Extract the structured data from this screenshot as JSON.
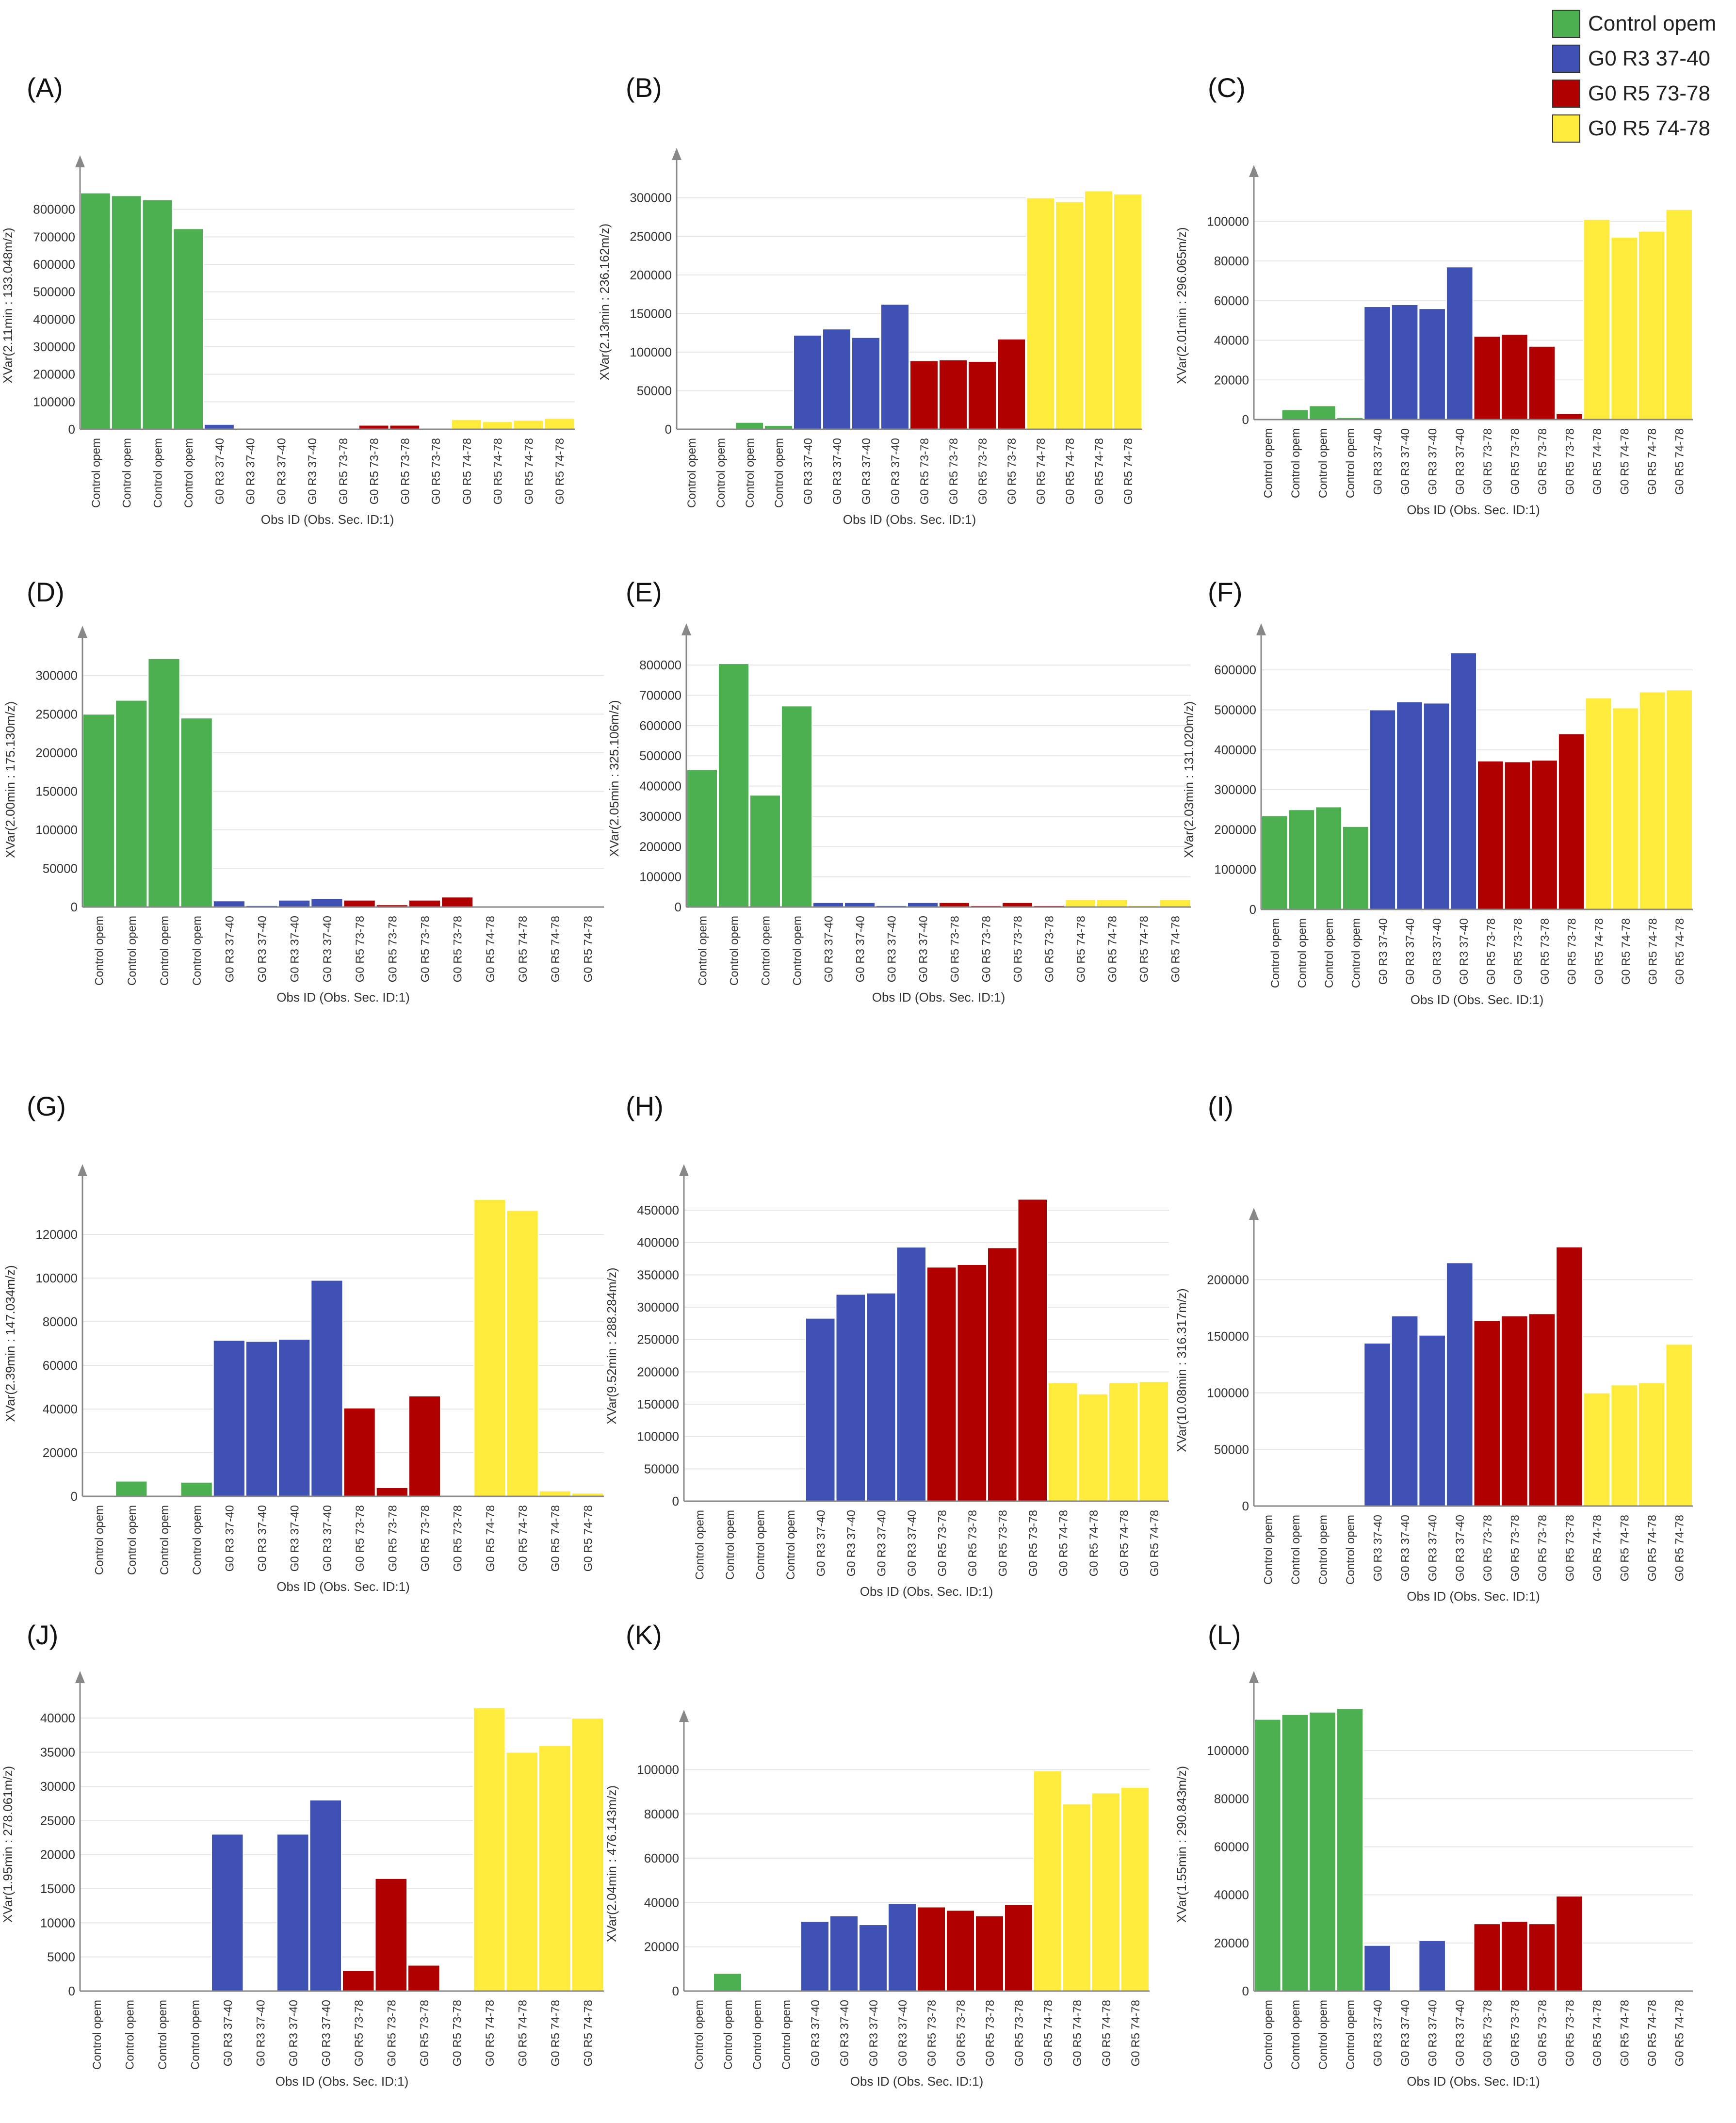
{
  "legend": [
    {
      "label": "Control opem",
      "color": "#4caf50"
    },
    {
      "label": "G0 R3 37-40",
      "color": "#3f51b5"
    },
    {
      "label": "G0 R5 73-78",
      "color": "#b00000"
    },
    {
      "label": "G0 R5 74-78",
      "color": "#ffeb3b"
    }
  ],
  "chart_data": [
    {
      "type": "bar",
      "panel": "(A)",
      "ylabel": "XVar(2.11min : 133.048m/z)",
      "xlabel": "Obs ID (Obs. Sec. ID:1)",
      "ylim": [
        0,
        900000
      ],
      "yticks": [
        0,
        100000,
        200000,
        300000,
        400000,
        500000,
        600000,
        700000,
        800000
      ],
      "categories": [
        "Control opem",
        "Control opem",
        "Control opem",
        "Control opem",
        "G0 R3 37-40",
        "G0 R3 37-40",
        "G0 R3 37-40",
        "G0 R3 37-40",
        "G0 R5 73-78",
        "G0 R5 73-78",
        "G0 R5 73-78",
        "G0 R5 73-78",
        "G0 R5 74-78",
        "G0 R5 74-78",
        "G0 R5 74-78",
        "G0 R5 74-78"
      ],
      "groups": [
        0,
        0,
        0,
        0,
        1,
        1,
        1,
        1,
        2,
        2,
        2,
        2,
        3,
        3,
        3,
        3
      ],
      "values": [
        860000,
        850000,
        835000,
        730000,
        18000,
        2000,
        2000,
        2000,
        2000,
        15000,
        15000,
        2000,
        35000,
        28000,
        33000,
        40000
      ]
    },
    {
      "type": "bar",
      "panel": "(B)",
      "ylabel": "XVar(2.13min : 236.162m/z)",
      "xlabel": "Obs ID (Obs. Sec. ID:1)",
      "ylim": [
        0,
        330000
      ],
      "yticks": [
        0,
        50000,
        100000,
        150000,
        200000,
        250000,
        300000
      ],
      "categories": [
        "Control opem",
        "Control opem",
        "Control opem",
        "Control opem",
        "G0 R3 37-40",
        "G0 R3 37-40",
        "G0 R3 37-40",
        "G0 R3 37-40",
        "G0 R5 73-78",
        "G0 R5 73-78",
        "G0 R5 73-78",
        "G0 R5 73-78",
        "G0 R5 74-78",
        "G0 R5 74-78",
        "G0 R5 74-78",
        "G0 R5 74-78"
      ],
      "groups": [
        0,
        0,
        0,
        0,
        1,
        1,
        1,
        1,
        2,
        2,
        2,
        2,
        3,
        3,
        3,
        3
      ],
      "values": [
        1000,
        1000,
        9000,
        5000,
        122000,
        130000,
        119000,
        162000,
        89000,
        90000,
        88000,
        117000,
        300000,
        295000,
        309000,
        305000
      ]
    },
    {
      "type": "bar",
      "panel": "(C)",
      "ylabel": "XVar(2.01min : 296.065m/z)",
      "xlabel": "Obs ID (Obs. Sec. ID:1)",
      "ylim": [
        0,
        115000
      ],
      "yticks": [
        0,
        20000,
        40000,
        60000,
        80000,
        100000
      ],
      "categories": [
        "Control opem",
        "Control opem",
        "Control opem",
        "Control opem",
        "G0 R3 37-40",
        "G0 R3 37-40",
        "G0 R3 37-40",
        "G0 R3 37-40",
        "G0 R5 73-78",
        "G0 R5 73-78",
        "G0 R5 73-78",
        "G0 R5 73-78",
        "G0 R5 74-78",
        "G0 R5 74-78",
        "G0 R5 74-78",
        "G0 R5 74-78"
      ],
      "groups": [
        0,
        0,
        0,
        0,
        1,
        1,
        1,
        1,
        2,
        2,
        2,
        2,
        3,
        3,
        3,
        3
      ],
      "values": [
        500,
        5000,
        7000,
        1000,
        57000,
        58000,
        56000,
        77000,
        42000,
        43000,
        37000,
        3000,
        101000,
        92000,
        95000,
        106000
      ]
    },
    {
      "type": "bar",
      "panel": "(D)",
      "ylabel": "XVar(2.00min : 175.130m/z)",
      "xlabel": "Obs ID (Obs. Sec. ID:1)",
      "ylim": [
        0,
        330000
      ],
      "yticks": [
        0,
        50000,
        100000,
        150000,
        200000,
        250000,
        300000
      ],
      "categories": [
        "Control opem",
        "Control opem",
        "Control opem",
        "Control opem",
        "G0 R3 37-40",
        "G0 R3 37-40",
        "G0 R3 37-40",
        "G0 R3 37-40",
        "G0 R5 73-78",
        "G0 R5 73-78",
        "G0 R5 73-78",
        "G0 R5 73-78",
        "G0 R5 74-78",
        "G0 R5 74-78",
        "G0 R5 74-78",
        "G0 R5 74-78"
      ],
      "groups": [
        0,
        0,
        0,
        0,
        1,
        1,
        1,
        1,
        2,
        2,
        2,
        2,
        3,
        3,
        3,
        3
      ],
      "values": [
        250000,
        268000,
        322000,
        245000,
        8000,
        2000,
        9000,
        11000,
        9000,
        3000,
        9000,
        13000,
        1000,
        1000,
        1000,
        1000
      ]
    },
    {
      "type": "bar",
      "panel": "(E)",
      "ylabel": "XVar(2.05min : 325.106m/z)",
      "xlabel": "Obs ID (Obs. Sec. ID:1)",
      "ylim": [
        0,
        850000
      ],
      "yticks": [
        0,
        100000,
        200000,
        300000,
        400000,
        500000,
        600000,
        700000,
        800000
      ],
      "categories": [
        "Control opem",
        "Control opem",
        "Control opem",
        "Control opem",
        "G0 R3 37-40",
        "G0 R3 37-40",
        "G0 R3 37-40",
        "G0 R3 37-40",
        "G0 R5 73-78",
        "G0 R5 73-78",
        "G0 R5 73-78",
        "G0 R5 73-78",
        "G0 R5 74-78",
        "G0 R5 74-78",
        "G0 R5 74-78",
        "G0 R5 74-78"
      ],
      "groups": [
        0,
        0,
        0,
        0,
        1,
        1,
        1,
        1,
        2,
        2,
        2,
        2,
        3,
        3,
        3,
        3
      ],
      "values": [
        455000,
        805000,
        370000,
        665000,
        15000,
        15000,
        5000,
        15000,
        15000,
        5000,
        15000,
        5000,
        25000,
        25000,
        5000,
        25000
      ]
    },
    {
      "type": "bar",
      "panel": "(F)",
      "ylabel": "XVar(2.03min : 131.020m/z)",
      "xlabel": "Obs ID (Obs. Sec. ID:1)",
      "ylim": [
        0,
        650000
      ],
      "yticks": [
        0,
        100000,
        200000,
        300000,
        400000,
        500000,
        600000
      ],
      "categories": [
        "Control opem",
        "Control opem",
        "Control opem",
        "Control opem",
        "G0 R3 37-40",
        "G0 R3 37-40",
        "G0 R3 37-40",
        "G0 R3 37-40",
        "G0 R5 73-78",
        "G0 R5 73-78",
        "G0 R5 73-78",
        "G0 R5 73-78",
        "G0 R5 74-78",
        "G0 R5 74-78",
        "G0 R5 74-78",
        "G0 R5 74-78"
      ],
      "groups": [
        0,
        0,
        0,
        0,
        1,
        1,
        1,
        1,
        2,
        2,
        2,
        2,
        3,
        3,
        3,
        3
      ],
      "values": [
        235000,
        250000,
        257000,
        208000,
        500000,
        520000,
        517000,
        643000,
        372000,
        370000,
        374000,
        440000,
        530000,
        505000,
        545000,
        550000
      ]
    },
    {
      "type": "bar",
      "panel": "(G)",
      "ylabel": "XVar(2.39min : 147.034m/z)",
      "xlabel": "Obs ID (Obs. Sec. ID:1)",
      "ylim": [
        0,
        140000
      ],
      "yticks": [
        0,
        20000,
        40000,
        60000,
        80000,
        100000,
        120000
      ],
      "categories": [
        "Control opem",
        "Control opem",
        "Control opem",
        "Control opem",
        "G0 R3 37-40",
        "G0 R3 37-40",
        "G0 R3 37-40",
        "G0 R3 37-40",
        "G0 R5 73-78",
        "G0 R5 73-78",
        "G0 R5 73-78",
        "G0 R5 73-78",
        "G0 R5 74-78",
        "G0 R5 74-78",
        "G0 R5 74-78",
        "G0 R5 74-78"
      ],
      "groups": [
        0,
        0,
        0,
        0,
        1,
        1,
        1,
        1,
        2,
        2,
        2,
        2,
        3,
        3,
        3,
        3
      ],
      "values": [
        200,
        7000,
        200,
        6500,
        71500,
        71000,
        72000,
        99000,
        40500,
        4000,
        46000,
        500,
        136000,
        131000,
        2500,
        1500
      ]
    },
    {
      "type": "bar",
      "panel": "(H)",
      "ylabel": "XVar(9.52min : 288.284m/z)",
      "xlabel": "Obs ID (Obs. Sec. ID:1)",
      "ylim": [
        0,
        480000
      ],
      "yticks": [
        0,
        50000,
        100000,
        150000,
        200000,
        250000,
        300000,
        350000,
        400000,
        450000
      ],
      "categories": [
        "Control opem",
        "Control opem",
        "Control opem",
        "Control opem",
        "G0 R3 37-40",
        "G0 R3 37-40",
        "G0 R3 37-40",
        "G0 R3 37-40",
        "G0 R5 73-78",
        "G0 R5 73-78",
        "G0 R5 73-78",
        "G0 R5 73-78",
        "G0 R5 74-78",
        "G0 R5 74-78",
        "G0 R5 74-78",
        "G0 R5 74-78"
      ],
      "groups": [
        0,
        0,
        0,
        0,
        1,
        1,
        1,
        1,
        2,
        2,
        2,
        2,
        3,
        3,
        3,
        3
      ],
      "values": [
        1000,
        1000,
        1000,
        1000,
        283000,
        320000,
        322000,
        393000,
        362000,
        366000,
        392000,
        467000,
        183000,
        166000,
        183000,
        185000
      ]
    },
    {
      "type": "bar",
      "panel": "(I)",
      "ylabel": "XVar(10.08min : 316.317m/z)",
      "xlabel": "Obs ID (Obs. Sec. ID:1)",
      "ylim": [
        0,
        240000
      ],
      "yticks": [
        0,
        50000,
        100000,
        150000,
        200000
      ],
      "categories": [
        "Control opem",
        "Control opem",
        "Control opem",
        "Control opem",
        "G0 R3 37-40",
        "G0 R3 37-40",
        "G0 R3 37-40",
        "G0 R3 37-40",
        "G0 R5 73-78",
        "G0 R5 73-78",
        "G0 R5 73-78",
        "G0 R5 73-78",
        "G0 R5 74-78",
        "G0 R5 74-78",
        "G0 R5 74-78",
        "G0 R5 74-78"
      ],
      "groups": [
        0,
        0,
        0,
        0,
        1,
        1,
        1,
        1,
        2,
        2,
        2,
        2,
        3,
        3,
        3,
        3
      ],
      "values": [
        500,
        500,
        500,
        500,
        144000,
        168000,
        151000,
        215000,
        164000,
        168000,
        170000,
        229000,
        100000,
        107000,
        109000,
        143000
      ]
    },
    {
      "type": "bar",
      "panel": "(J)",
      "ylabel": "XVar(1.95min : 278.061m/z)",
      "xlabel": "Obs ID (Obs. Sec. ID:1)",
      "ylim": [
        0,
        43000
      ],
      "yticks": [
        0,
        5000,
        10000,
        15000,
        20000,
        25000,
        30000,
        35000,
        40000
      ],
      "categories": [
        "Control opem",
        "Control opem",
        "Control opem",
        "Control opem",
        "G0 R3 37-40",
        "G0 R3 37-40",
        "G0 R3 37-40",
        "G0 R3 37-40",
        "G0 R5 73-78",
        "G0 R5 73-78",
        "G0 R5 73-78",
        "G0 R5 73-78",
        "G0 R5 74-78",
        "G0 R5 74-78",
        "G0 R5 74-78",
        "G0 R5 74-78"
      ],
      "groups": [
        0,
        0,
        0,
        0,
        1,
        1,
        1,
        1,
        2,
        2,
        2,
        2,
        3,
        3,
        3,
        3
      ],
      "values": [
        100,
        100,
        100,
        100,
        23000,
        100,
        23000,
        28000,
        3000,
        16500,
        3800,
        100,
        41500,
        35000,
        36000,
        40000
      ]
    },
    {
      "type": "bar",
      "panel": "(K)",
      "ylabel": "XVar(2.04min : 476.143m/z)",
      "xlabel": "Obs ID (Obs. Sec. ID:1)",
      "ylim": [
        0,
        115000
      ],
      "yticks": [
        0,
        20000,
        40000,
        60000,
        80000,
        100000
      ],
      "categories": [
        "Control opem",
        "Control opem",
        "Control opem",
        "Control opem",
        "G0 R3 37-40",
        "G0 R3 37-40",
        "G0 R3 37-40",
        "G0 R3 37-40",
        "G0 R5 73-78",
        "G0 R5 73-78",
        "G0 R5 73-78",
        "G0 R5 73-78",
        "G0 R5 74-78",
        "G0 R5 74-78",
        "G0 R5 74-78",
        "G0 R5 74-78"
      ],
      "groups": [
        0,
        0,
        0,
        0,
        1,
        1,
        1,
        1,
        2,
        2,
        2,
        2,
        3,
        3,
        3,
        3
      ],
      "values": [
        500,
        8000,
        500,
        500,
        31500,
        34000,
        30000,
        39500,
        38000,
        36500,
        34000,
        39000,
        99500,
        84500,
        89500,
        92000
      ]
    },
    {
      "type": "bar",
      "panel": "(L)",
      "ylabel": "XVar(1.55min : 290.843m/z)",
      "xlabel": "Obs ID (Obs. Sec. ID:1)",
      "ylim": [
        0,
        122000
      ],
      "yticks": [
        0,
        20000,
        40000,
        60000,
        80000,
        100000
      ],
      "categories": [
        "Control opem",
        "Control opem",
        "Control opem",
        "Control opem",
        "G0 R3 37-40",
        "G0 R3 37-40",
        "G0 R3 37-40",
        "G0 R3 37-40",
        "G0 R5 73-78",
        "G0 R5 73-78",
        "G0 R5 73-78",
        "G0 R5 73-78",
        "G0 R5 74-78",
        "G0 R5 74-78",
        "G0 R5 74-78",
        "G0 R5 74-78"
      ],
      "groups": [
        0,
        0,
        0,
        0,
        1,
        1,
        1,
        1,
        2,
        2,
        2,
        2,
        3,
        3,
        3,
        3
      ],
      "values": [
        113000,
        115000,
        116000,
        117500,
        19000,
        500,
        21000,
        500,
        28000,
        29000,
        28000,
        39500,
        500,
        500,
        500,
        500
      ]
    }
  ]
}
